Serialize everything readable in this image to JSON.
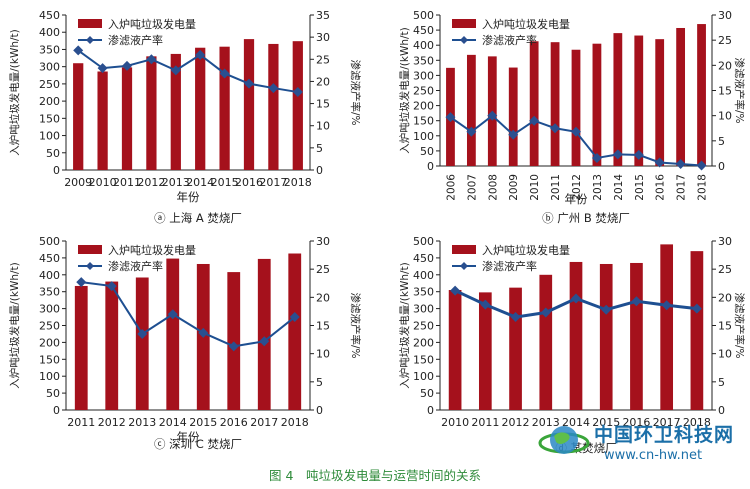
{
  "figure_caption": "图 4　吨垃圾发电量与运营时间的关系",
  "watermark": {
    "name": "中国环卫科技网",
    "url": "www.cn-hw.net"
  },
  "colors": {
    "bar": "#a5111c",
    "line": "#1e4f91",
    "marker": "#2a4f8f"
  },
  "chart_data": [
    {
      "type": "bar",
      "caption": "ⓐ 上海 A 焚烧厂",
      "xlabel": "年份",
      "ylabel_left": "入炉吨垃圾发电量/(kWh/t)",
      "ylabel_right": "渗滤液产率/%",
      "legend": [
        "入炉吨垃圾发电量",
        "渗滤液产率"
      ],
      "legend_position": "top-left",
      "ylim_left": [
        0,
        450
      ],
      "ylim_right": [
        0,
        35
      ],
      "yticks_left": [
        0,
        50,
        100,
        150,
        200,
        250,
        300,
        350,
        400,
        450
      ],
      "yticks_right": [
        0,
        5,
        10,
        15,
        20,
        25,
        30,
        35
      ],
      "categories": [
        "2009",
        "2010",
        "2011",
        "2012",
        "2013",
        "2014",
        "2015",
        "2016",
        "2017",
        "2018"
      ],
      "series": [
        {
          "name": "入炉吨垃圾发电量",
          "axis": "left",
          "kind": "bar",
          "values": [
            310,
            286,
            298,
            330,
            337,
            355,
            358,
            380,
            366,
            374
          ]
        },
        {
          "name": "渗滤液产率",
          "axis": "right",
          "kind": "line",
          "values": [
            27,
            23,
            23.5,
            25,
            22.5,
            26,
            21.8,
            19.5,
            18.5,
            17.6
          ]
        }
      ]
    },
    {
      "type": "bar",
      "caption": "ⓑ 广州 B 焚烧厂",
      "xlabel": "年份",
      "ylabel_left": "入炉吨垃圾发电量/(kWh/t)",
      "ylabel_right": "渗滤液产率/%",
      "legend": [
        "入炉吨垃圾发电量",
        "渗滤液产率"
      ],
      "legend_position": "top-left",
      "ylim_left": [
        0,
        500
      ],
      "ylim_right": [
        0,
        30
      ],
      "yticks_left": [
        0,
        50,
        100,
        150,
        200,
        250,
        300,
        350,
        400,
        450,
        500
      ],
      "yticks_right": [
        0,
        5,
        10,
        15,
        20,
        25,
        30
      ],
      "categories": [
        "2006",
        "2007",
        "2008",
        "2009",
        "2010",
        "2011",
        "2012",
        "2013",
        "2014",
        "2015",
        "2016",
        "2017",
        "2018"
      ],
      "series": [
        {
          "name": "入炉吨垃圾发电量",
          "axis": "left",
          "kind": "bar",
          "values": [
            325,
            368,
            363,
            326,
            413,
            410,
            385,
            405,
            440,
            432,
            420,
            457,
            470
          ]
        },
        {
          "name": "渗滤液产率",
          "axis": "right",
          "kind": "line",
          "values": [
            9.7,
            6.8,
            10,
            6.2,
            9,
            7.5,
            6.8,
            1.6,
            2.3,
            2.2,
            0.7,
            0.4,
            0.1
          ]
        }
      ]
    },
    {
      "type": "bar",
      "caption": "ⓒ 深圳 C 焚烧厂",
      "xlabel": "年份",
      "ylabel_left": "入炉吨垃圾发电量/(kWh/t)",
      "ylabel_right": "渗滤液产率/%",
      "legend": [
        "入炉吨垃圾发电量",
        "渗滤液产率"
      ],
      "legend_position": "top-left",
      "ylim_left": [
        0,
        500
      ],
      "ylim_right": [
        0,
        30
      ],
      "yticks_left": [
        0,
        50,
        100,
        150,
        200,
        250,
        300,
        350,
        400,
        450,
        500
      ],
      "yticks_right": [
        0,
        5,
        10,
        15,
        20,
        25,
        30
      ],
      "categories": [
        "2011",
        "2012",
        "2013",
        "2014",
        "2015",
        "2016",
        "2017",
        "2018"
      ],
      "series": [
        {
          "name": "入炉吨垃圾发电量",
          "axis": "left",
          "kind": "bar",
          "values": [
            367,
            380,
            392,
            448,
            432,
            408,
            447,
            463
          ]
        },
        {
          "name": "渗滤液产率",
          "axis": "right",
          "kind": "line",
          "values": [
            22.7,
            22,
            13.5,
            17,
            13.7,
            11.3,
            12.2,
            16.5
          ]
        }
      ]
    },
    {
      "type": "bar",
      "caption": "ⓓ 某焚烧厂",
      "xlabel": "",
      "ylabel_left": "入炉吨垃圾发电量/(kWh/t)",
      "ylabel_right": "渗滤液产率/%",
      "legend": [
        "入炉吨垃圾发电量",
        "渗滤液产率"
      ],
      "legend_position": "top-left",
      "ylim_left": [
        0,
        500
      ],
      "ylim_right": [
        0,
        30
      ],
      "yticks_left": [
        0,
        50,
        100,
        150,
        200,
        250,
        300,
        350,
        400,
        450,
        500
      ],
      "yticks_right": [
        0,
        5,
        10,
        15,
        20,
        25,
        30
      ],
      "categories": [
        "2010",
        "2011",
        "2012",
        "2013",
        "2014",
        "2015",
        "2016",
        "2017",
        "2018"
      ],
      "series": [
        {
          "name": "入炉吨垃圾发电量",
          "axis": "left",
          "kind": "bar",
          "values": [
            355,
            348,
            362,
            400,
            438,
            432,
            435,
            490,
            470
          ]
        },
        {
          "name": "渗滤液产率",
          "axis": "right",
          "kind": "line",
          "values": [
            21.2,
            18.7,
            16.5,
            17.3,
            19.8,
            17.8,
            19.3,
            18.6,
            18
          ]
        }
      ]
    }
  ]
}
